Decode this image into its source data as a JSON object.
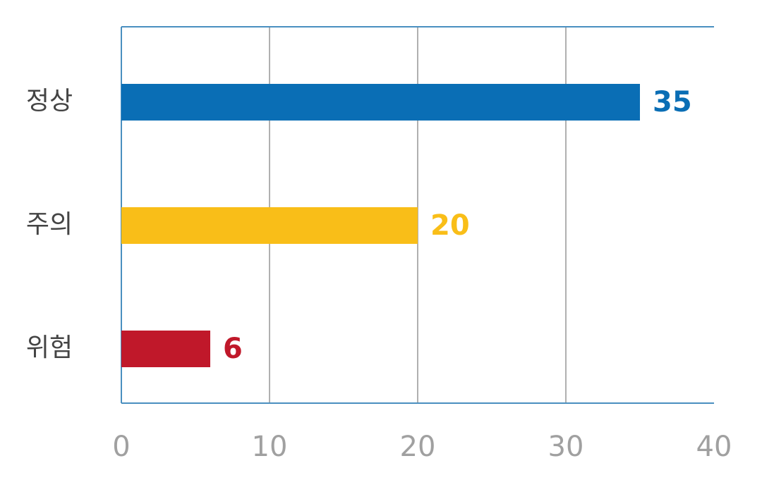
{
  "chart_data": {
    "type": "hbar",
    "categories": [
      "정상",
      "주의",
      "위험"
    ],
    "values": [
      35,
      20,
      6
    ],
    "colors": [
      "#0a6eb5",
      "#f9be18",
      "#c0182a"
    ],
    "xlim": [
      0,
      40
    ],
    "xticks": [
      0,
      10,
      20,
      30,
      40
    ],
    "grid": true
  }
}
